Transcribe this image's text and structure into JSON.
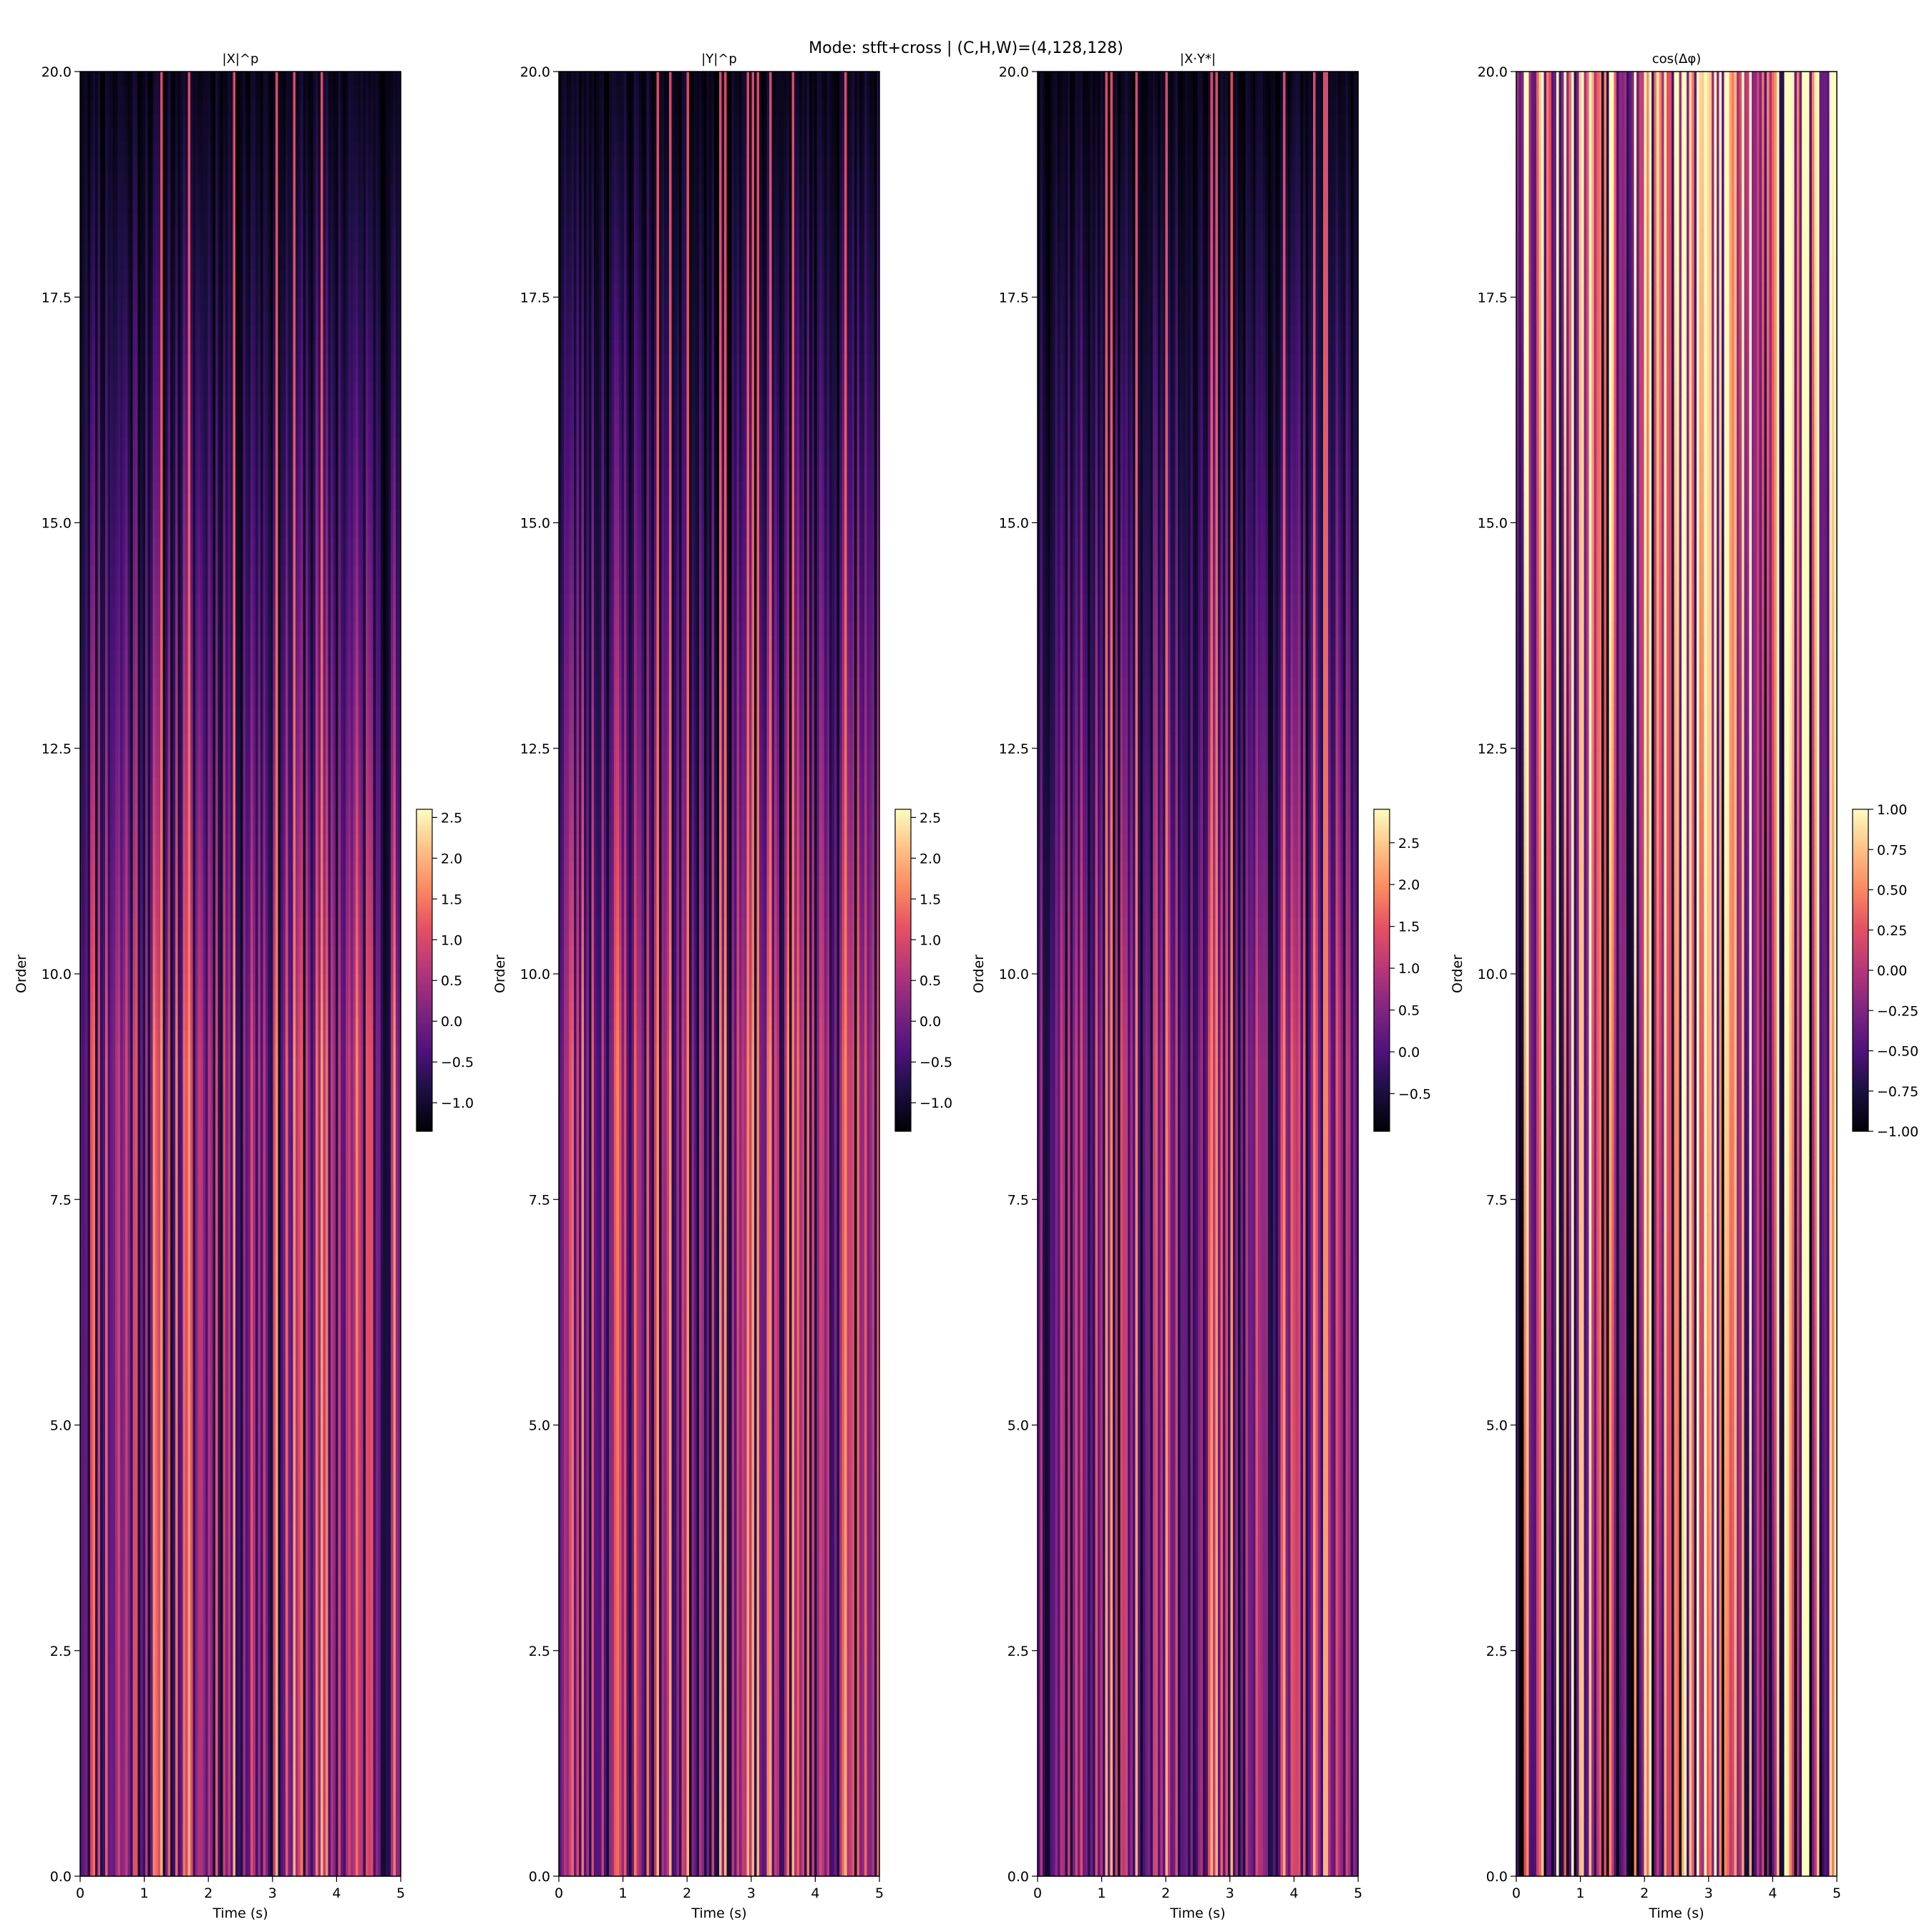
{
  "suptitle": "Mode: stft+cross | (C,H,W)=(4,128,128)",
  "chart_data": [
    {
      "type": "heatmap",
      "title": "|X|^p",
      "xlabel": "Time (s)",
      "ylabel": "Order",
      "xlim": [
        0,
        5
      ],
      "ylim": [
        0,
        20
      ],
      "xticks": [
        "0",
        "1",
        "2",
        "3",
        "4",
        "5"
      ],
      "yticks": [
        "0.0",
        "2.5",
        "5.0",
        "7.5",
        "10.0",
        "12.5",
        "15.0",
        "17.5",
        "20.0"
      ],
      "colormap": "magma",
      "clim": [
        -1.35,
        2.6
      ],
      "colorbar_ticks": [
        "−1.0",
        "−0.5",
        "0.0",
        "0.5",
        "1.0",
        "1.5",
        "2.0",
        "2.5"
      ],
      "grid": [
        128,
        128
      ],
      "seed": 11
    },
    {
      "type": "heatmap",
      "title": "|Y|^p",
      "xlabel": "Time (s)",
      "ylabel": "Order",
      "xlim": [
        0,
        5
      ],
      "ylim": [
        0,
        20
      ],
      "xticks": [
        "0",
        "1",
        "2",
        "3",
        "4",
        "5"
      ],
      "yticks": [
        "0.0",
        "2.5",
        "5.0",
        "7.5",
        "10.0",
        "12.5",
        "15.0",
        "17.5",
        "20.0"
      ],
      "colormap": "magma",
      "clim": [
        -1.35,
        2.6
      ],
      "colorbar_ticks": [
        "−1.0",
        "−0.5",
        "0.0",
        "0.5",
        "1.0",
        "1.5",
        "2.0",
        "2.5"
      ],
      "grid": [
        128,
        128
      ],
      "seed": 23
    },
    {
      "type": "heatmap",
      "title": "|X·Y*|",
      "xlabel": "Time (s)",
      "ylabel": "Order",
      "xlim": [
        0,
        5
      ],
      "ylim": [
        0,
        20
      ],
      "xticks": [
        "0",
        "1",
        "2",
        "3",
        "4",
        "5"
      ],
      "yticks": [
        "0.0",
        "2.5",
        "5.0",
        "7.5",
        "10.0",
        "12.5",
        "15.0",
        "17.5",
        "20.0"
      ],
      "colormap": "magma",
      "clim": [
        -0.95,
        2.9
      ],
      "colorbar_ticks": [
        "−0.5",
        "0.0",
        "0.5",
        "1.0",
        "1.5",
        "2.0",
        "2.5"
      ],
      "grid": [
        128,
        128
      ],
      "seed": 37
    },
    {
      "type": "heatmap",
      "title": "cos(Δφ)",
      "xlabel": "Time (s)",
      "ylabel": "Order",
      "xlim": [
        0,
        5
      ],
      "ylim": [
        0,
        20
      ],
      "xticks": [
        "0",
        "1",
        "2",
        "3",
        "4",
        "5"
      ],
      "yticks": [
        "0.0",
        "2.5",
        "5.0",
        "7.5",
        "10.0",
        "12.5",
        "15.0",
        "17.5",
        "20.0"
      ],
      "colormap": "magma",
      "clim": [
        -1.0,
        1.0
      ],
      "colorbar_ticks": [
        "−1.00",
        "−0.75",
        "−0.50",
        "−0.25",
        "0.00",
        "0.25",
        "0.50",
        "0.75",
        "1.00"
      ],
      "grid": [
        128,
        128
      ],
      "seed": 53
    }
  ]
}
